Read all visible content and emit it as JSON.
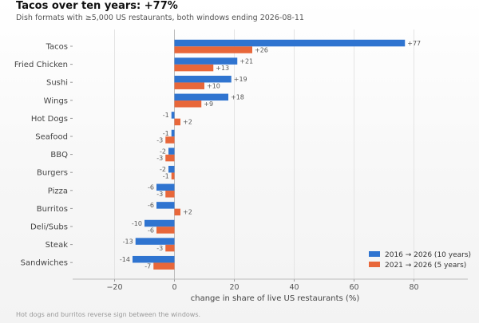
{
  "title": "Tacos over ten years: +77%",
  "subtitle": "Dish formats with ≥5,000 US restaurants, both windows ending 2026-08-11",
  "footnote": "Hot dogs and burritos reverse sign between the windows.",
  "colors": {
    "ten_year": "#2f74d0",
    "five_year": "#e8673a",
    "grid": "#e4e4e4",
    "zero": "#bbbbbb"
  },
  "chart_data": {
    "type": "bar",
    "orientation": "horizontal",
    "categories": [
      "Tacos",
      "Fried Chicken",
      "Sushi",
      "Wings",
      "Hot Dogs",
      "Seafood",
      "BBQ",
      "Burgers",
      "Pizza",
      "Burritos",
      "Deli/Subs",
      "Steak",
      "Sandwiches"
    ],
    "series": [
      {
        "name": "2016 → 2026 (10 years)",
        "values": [
          77,
          21,
          19,
          18,
          -1,
          -1,
          -2,
          -2,
          -6,
          -6,
          -10,
          -13,
          -14
        ],
        "labels": [
          "+77",
          "+21",
          "+19",
          "+18",
          "-1",
          "-1",
          "-2",
          "-2",
          "-6",
          "-6",
          "-10",
          "-13",
          "-14"
        ]
      },
      {
        "name": "2021 → 2026 (5 years)",
        "values": [
          26,
          13,
          10,
          9,
          2,
          -3,
          -3,
          -1,
          -3,
          2,
          -6,
          -3,
          -7
        ],
        "labels": [
          "+26",
          "+13",
          "+10",
          "+9",
          "+2",
          "-3",
          "-3",
          "-1",
          "-3",
          "+2",
          "-6",
          "-3",
          "-7"
        ]
      }
    ],
    "xlabel": "change in share of live US restaurants (%)",
    "xlim": [
      -34,
      98
    ],
    "xticks": [
      -20,
      0,
      20,
      40,
      60,
      80
    ],
    "xtick_labels": [
      "−20",
      "0",
      "20",
      "40",
      "60",
      "80"
    ],
    "grid": "vertical",
    "legend_position": "lower-right"
  }
}
